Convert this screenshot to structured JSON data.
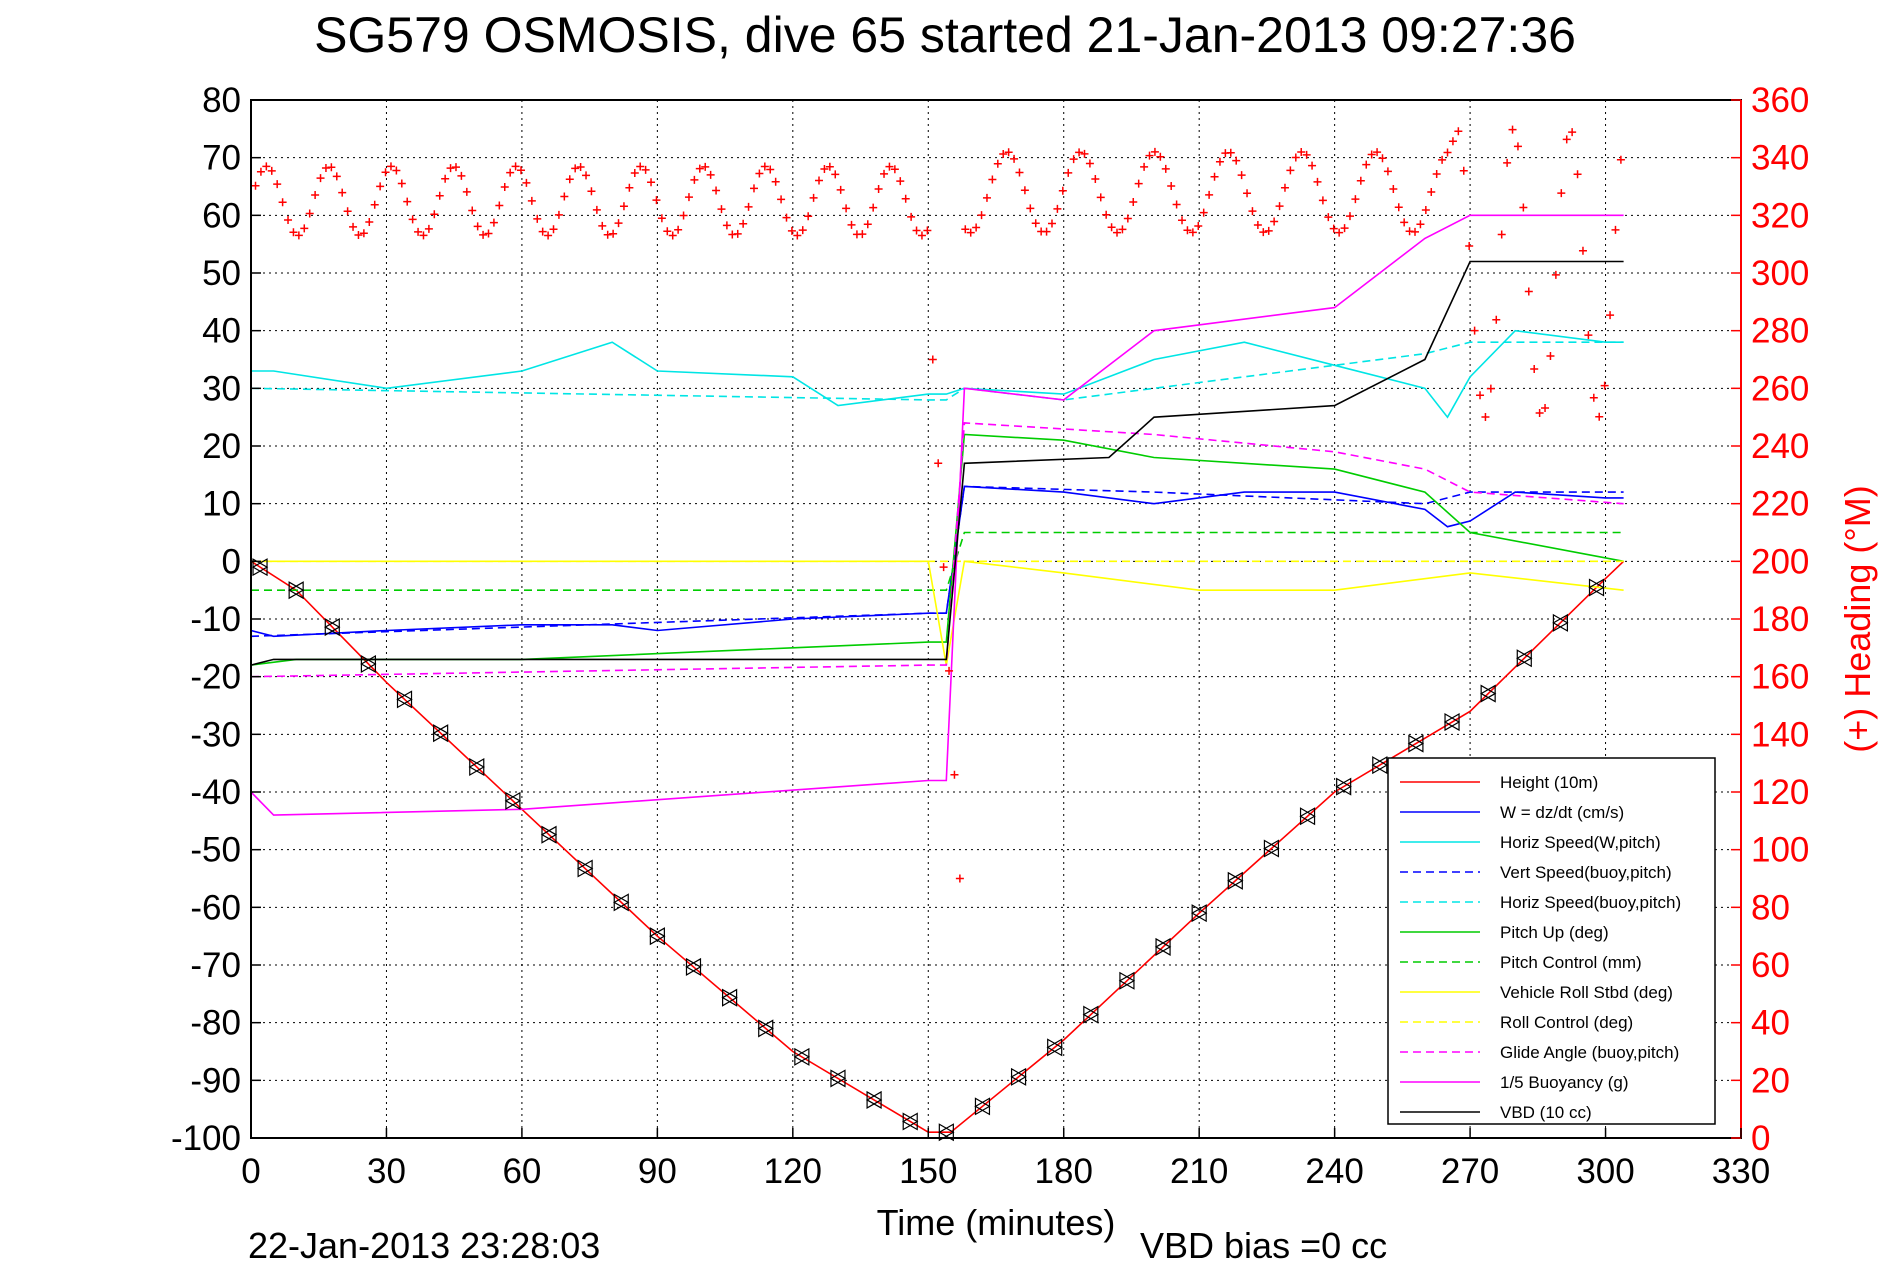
{
  "chart_data": {
    "type": "line",
    "title": "SG579 OSMOSIS, dive 65 started 21-Jan-2013 09:27:36",
    "xlabel": "Time (minutes)",
    "ylabel_right": "(+) Heading (°M)",
    "footer_left": "22-Jan-2013 23:28:03",
    "footer_right": "VBD bias =0 cc",
    "xlim": [
      0,
      330
    ],
    "ylim": [
      -100,
      80
    ],
    "ylim_right": [
      0,
      360
    ],
    "x_ticks": [
      "0",
      "30",
      "60",
      "90",
      "120",
      "150",
      "180",
      "210",
      "240",
      "270",
      "300",
      "330"
    ],
    "y_ticks": [
      "80",
      "70",
      "60",
      "50",
      "40",
      "30",
      "20",
      "10",
      "0",
      "-10",
      "-20",
      "-30",
      "-40",
      "-50",
      "-60",
      "-70",
      "-80",
      "-90",
      "-100"
    ],
    "y_ticks_right": [
      "360",
      "340",
      "320",
      "300",
      "280",
      "260",
      "240",
      "220",
      "200",
      "180",
      "160",
      "140",
      "120",
      "100",
      "80",
      "60",
      "40",
      "20",
      "0"
    ],
    "grid": true,
    "legend_position": "bottom-right",
    "series": [
      {
        "name": "Height (10m)",
        "color": "#ff0000",
        "style": "solid",
        "x": [
          0,
          10,
          30,
          60,
          90,
          120,
          150,
          155,
          180,
          210,
          240,
          270,
          300,
          304
        ],
        "y": [
          0,
          -5,
          -21,
          -43,
          -65,
          -85,
          -99,
          -99,
          -83,
          -61,
          -40,
          -26,
          -3,
          0
        ]
      },
      {
        "name": "W = dz/dt (cm/s)",
        "color": "#0000ff",
        "style": "solid",
        "x": [
          0,
          5,
          30,
          60,
          80,
          90,
          120,
          150,
          154,
          158,
          180,
          200,
          220,
          240,
          260,
          265,
          270,
          280,
          300,
          304
        ],
        "y": [
          -12,
          -13,
          -12,
          -11,
          -11,
          -12,
          -10,
          -9,
          -9,
          13,
          12,
          10,
          12,
          12,
          9,
          6,
          7,
          12,
          11,
          11
        ]
      },
      {
        "name": "Horiz Speed(W,pitch)",
        "color": "#00e5e5",
        "style": "solid",
        "x": [
          0,
          5,
          30,
          60,
          80,
          90,
          120,
          130,
          150,
          154,
          158,
          180,
          200,
          220,
          240,
          260,
          265,
          270,
          280,
          300,
          304
        ],
        "y": [
          33,
          33,
          30,
          33,
          38,
          33,
          32,
          27,
          29,
          29,
          30,
          29,
          35,
          38,
          34,
          30,
          25,
          32,
          40,
          38,
          38
        ]
      },
      {
        "name": "Vert Speed(buoy,pitch)",
        "color": "#0000ff",
        "style": "dashed",
        "x": [
          0,
          150,
          154,
          158,
          200,
          260,
          270,
          304
        ],
        "y": [
          -13,
          -9,
          -9,
          13,
          12,
          10,
          12,
          12
        ]
      },
      {
        "name": "Horiz Speed(buoy,pitch)",
        "color": "#00e5e5",
        "style": "dashed",
        "x": [
          0,
          150,
          154,
          158,
          180,
          200,
          240,
          260,
          270,
          304
        ],
        "y": [
          30,
          28,
          28,
          30,
          28,
          30,
          34,
          36,
          38,
          38
        ]
      },
      {
        "name": "Pitch Up (deg)",
        "color": "#00cc00",
        "style": "solid",
        "x": [
          0,
          10,
          60,
          120,
          150,
          154,
          158,
          180,
          200,
          240,
          260,
          270,
          304
        ],
        "y": [
          -18,
          -17,
          -17,
          -15,
          -14,
          -14,
          22,
          21,
          18,
          16,
          12,
          5,
          0
        ]
      },
      {
        "name": "Pitch Control (mm)",
        "color": "#00cc00",
        "style": "dashed",
        "x": [
          0,
          150,
          154,
          158,
          304
        ],
        "y": [
          -5,
          -5,
          -5,
          5,
          5
        ]
      },
      {
        "name": "Vehicle Roll Stbd (deg)",
        "color": "#ffff00",
        "style": "solid",
        "x": [
          0,
          30,
          60,
          90,
          120,
          150,
          154,
          158,
          180,
          210,
          240,
          270,
          304
        ],
        "y": [
          0,
          0,
          0,
          0,
          0,
          0,
          -18,
          0,
          -2,
          -5,
          -5,
          -2,
          -5
        ]
      },
      {
        "name": "Roll Control (deg)",
        "color": "#ffff00",
        "style": "dashed",
        "x": [
          0,
          154,
          158,
          304
        ],
        "y": [
          0,
          0,
          0,
          0
        ]
      },
      {
        "name": "Glide Angle (buoy,pitch)",
        "color": "#ff00ff",
        "style": "dashed",
        "x": [
          0,
          150,
          154,
          158,
          200,
          240,
          260,
          270,
          304
        ],
        "y": [
          -20,
          -18,
          -18,
          24,
          22,
          19,
          16,
          12,
          10
        ]
      },
      {
        "name": "1/5 Buoyancy (g)",
        "color": "#ff00ff",
        "style": "solid",
        "x": [
          0,
          5,
          60,
          150,
          154,
          158,
          180,
          190,
          200,
          240,
          260,
          270,
          304
        ],
        "y": [
          -40,
          -44,
          -43,
          -38,
          -38,
          30,
          28,
          34,
          40,
          44,
          56,
          60,
          60
        ]
      },
      {
        "name": "VBD (10 cc)",
        "color": "#000000",
        "style": "solid",
        "x": [
          0,
          5,
          150,
          154,
          158,
          190,
          200,
          240,
          260,
          270,
          304
        ],
        "y": [
          -18,
          -17,
          -17,
          -17,
          17,
          18,
          25,
          27,
          35,
          52,
          52
        ]
      }
    ],
    "heading_series": {
      "name": "(+) Heading (°M)",
      "color": "#ff0000",
      "marker": "+"
    }
  }
}
